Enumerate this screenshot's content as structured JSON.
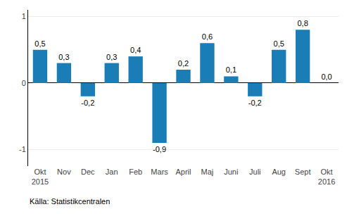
{
  "chart_data": {
    "type": "bar",
    "categories": [
      "Okt\n2015",
      "Nov",
      "Dec",
      "Jan",
      "Feb",
      "Mars",
      "April",
      "Maj",
      "Juni",
      "Juli",
      "Aug",
      "Sept",
      "Okt\n2016"
    ],
    "values": [
      0.5,
      0.3,
      -0.2,
      0.3,
      0.4,
      -0.9,
      0.2,
      0.6,
      0.1,
      -0.2,
      0.5,
      0.8,
      0.0
    ],
    "value_labels": [
      "0,5",
      "0,3",
      "-0,2",
      "0,3",
      "0,4",
      "-0,9",
      "0,2",
      "0,6",
      "0,1",
      "-0,2",
      "0,5",
      "0,8",
      "0,0"
    ],
    "data_labels": true,
    "color": "#1a7db5",
    "ylim": [
      -1.25,
      1.1
    ],
    "yticks": [
      -1,
      0,
      1
    ],
    "grid": true,
    "annotations": [
      "Källa: Statistikcentralen"
    ]
  }
}
